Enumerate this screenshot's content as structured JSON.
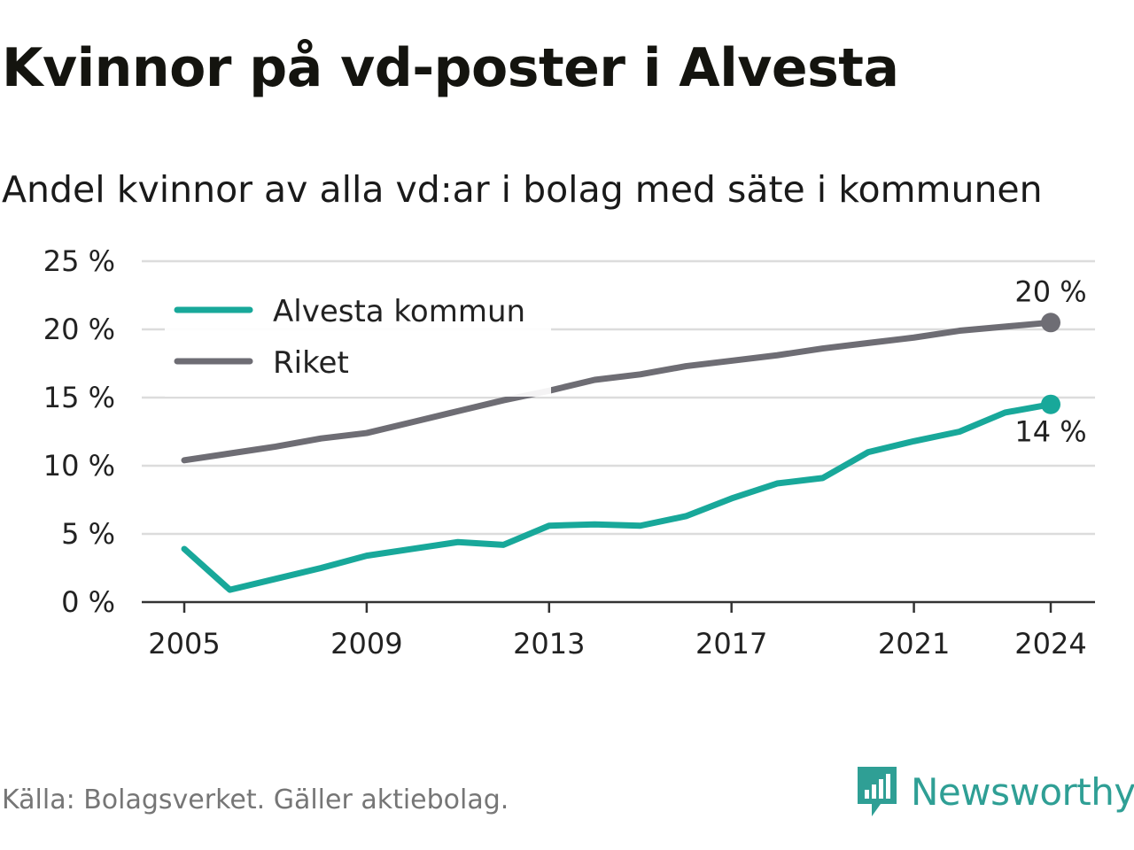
{
  "title": "Kvinnor på vd-poster i Alvesta",
  "subtitle": "Andel kvinnor av alla vd:ar i bolag med säte i kommunen",
  "source": "Källa: Bolagsverket. Gäller aktiebolag.",
  "brand": "Newsworthy",
  "colors": {
    "alvesta": "#18a89a",
    "riket": "#6e6d74",
    "grid": "#dcdcdc",
    "brand": "#2f9f95"
  },
  "chart_data": {
    "type": "line",
    "x": [
      2005,
      2006,
      2007,
      2008,
      2009,
      2010,
      2011,
      2012,
      2013,
      2014,
      2015,
      2016,
      2017,
      2018,
      2019,
      2020,
      2021,
      2022,
      2023,
      2024
    ],
    "series": [
      {
        "name": "Alvesta kommun",
        "color": "#18a89a",
        "values": [
          3.9,
          0.9,
          1.7,
          2.5,
          3.4,
          3.9,
          4.4,
          4.2,
          5.6,
          5.7,
          5.6,
          6.3,
          7.6,
          8.7,
          9.1,
          11.0,
          11.8,
          12.5,
          13.9,
          14.5
        ],
        "end_label": "14 %"
      },
      {
        "name": "Riket",
        "color": "#6e6d74",
        "values": [
          10.4,
          10.9,
          11.4,
          12.0,
          12.4,
          13.2,
          14.0,
          14.8,
          15.5,
          16.3,
          16.7,
          17.3,
          17.7,
          18.1,
          18.6,
          19.0,
          19.4,
          19.9,
          20.2,
          20.5
        ],
        "end_label": "20 %"
      }
    ],
    "ylim": [
      0,
      25
    ],
    "y_ticks": [
      0,
      5,
      10,
      15,
      20,
      25
    ],
    "y_tick_labels": [
      "0 %",
      "5 %",
      "10 %",
      "15 %",
      "20 %",
      "25 %"
    ],
    "x_ticks": [
      2005,
      2009,
      2013,
      2017,
      2021,
      2024
    ],
    "x_tick_labels": [
      "2005",
      "2009",
      "2013",
      "2017",
      "2021",
      "2024"
    ],
    "xlabel": "",
    "ylabel": "",
    "grid": true,
    "legend_position": "top-left"
  }
}
